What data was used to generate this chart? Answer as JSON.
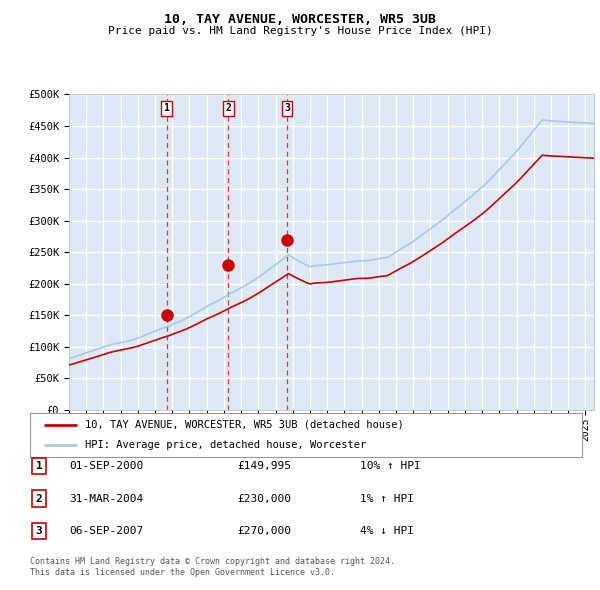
{
  "title": "10, TAY AVENUE, WORCESTER, WR5 3UB",
  "subtitle": "Price paid vs. HM Land Registry's House Price Index (HPI)",
  "ylabel_ticks": [
    "£0",
    "£50K",
    "£100K",
    "£150K",
    "£200K",
    "£250K",
    "£300K",
    "£350K",
    "£400K",
    "£450K",
    "£500K"
  ],
  "ytick_values": [
    0,
    50000,
    100000,
    150000,
    200000,
    250000,
    300000,
    350000,
    400000,
    450000,
    500000
  ],
  "xlim_start": 1995.0,
  "xlim_end": 2025.5,
  "ylim_min": 0,
  "ylim_max": 500000,
  "sale_dates": [
    2000.667,
    2004.25,
    2007.667
  ],
  "sale_prices": [
    149995,
    230000,
    270000
  ],
  "sale_labels": [
    "1",
    "2",
    "3"
  ],
  "sale_info": [
    {
      "label": "1",
      "date": "01-SEP-2000",
      "price": "£149,995",
      "hpi": "10% ↑ HPI"
    },
    {
      "label": "2",
      "date": "31-MAR-2004",
      "price": "£230,000",
      "hpi": "1% ↑ HPI"
    },
    {
      "label": "3",
      "date": "06-SEP-2007",
      "price": "£270,000",
      "hpi": "4% ↓ HPI"
    }
  ],
  "legend_line1": "10, TAY AVENUE, WORCESTER, WR5 3UB (detached house)",
  "legend_line2": "HPI: Average price, detached house, Worcester",
  "footer1": "Contains HM Land Registry data © Crown copyright and database right 2024.",
  "footer2": "This data is licensed under the Open Government Licence v3.0.",
  "bg_color": "#dce9f5",
  "grid_color": "#ffffff",
  "red_line_color": "#cc0000",
  "blue_line_color": "#a8c8e8"
}
